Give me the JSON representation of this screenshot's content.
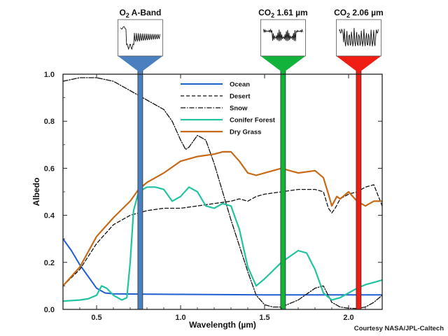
{
  "chart_data": {
    "type": "line",
    "xlabel": "Wavelength (µm)",
    "ylabel": "Albedo",
    "xlim": [
      0.3,
      2.2
    ],
    "ylim": [
      0.0,
      1.0
    ],
    "x_ticks": [
      0.5,
      1.0,
      1.5,
      2.0
    ],
    "x_tick_labels": [
      "0.5",
      "1.0",
      "1.5",
      "2.0"
    ],
    "y_ticks": [
      0.0,
      0.2,
      0.4,
      0.6,
      0.8,
      1.0
    ],
    "y_tick_labels": [
      "0.0",
      "0.2",
      "0.4",
      "0.6",
      "0.8",
      "1.0"
    ],
    "legend_position": "top-center",
    "series": [
      {
        "name": "Ocean",
        "key": "ocean",
        "color": "#1f5fd1",
        "dash": "",
        "width": 2,
        "x": [
          0.3,
          0.35,
          0.4,
          0.45,
          0.5,
          0.55,
          0.6,
          0.8,
          1.0,
          1.5,
          2.0,
          2.2
        ],
        "y": [
          0.3,
          0.25,
          0.19,
          0.14,
          0.09,
          0.07,
          0.066,
          0.065,
          0.064,
          0.062,
          0.062,
          0.062
        ]
      },
      {
        "name": "Desert",
        "key": "desert",
        "color": "#111111",
        "dash": "5,3",
        "width": 1.3,
        "x": [
          0.3,
          0.4,
          0.5,
          0.6,
          0.7,
          0.8,
          0.9,
          1.0,
          1.1,
          1.2,
          1.3,
          1.35,
          1.4,
          1.45,
          1.5,
          1.6,
          1.7,
          1.8,
          1.85,
          1.88,
          1.9,
          1.92,
          1.95,
          2.0,
          2.05,
          2.1,
          2.15,
          2.2
        ],
        "y": [
          0.1,
          0.17,
          0.28,
          0.36,
          0.4,
          0.42,
          0.43,
          0.43,
          0.44,
          0.45,
          0.46,
          0.47,
          0.46,
          0.48,
          0.49,
          0.5,
          0.51,
          0.51,
          0.5,
          0.43,
          0.41,
          0.43,
          0.47,
          0.49,
          0.5,
          0.52,
          0.53,
          0.44
        ]
      },
      {
        "name": "Snow",
        "key": "snow",
        "color": "#111111",
        "dash": "7,2,1.5,2",
        "width": 1.3,
        "x": [
          0.3,
          0.4,
          0.5,
          0.6,
          0.7,
          0.8,
          0.9,
          0.95,
          1.0,
          1.03,
          1.05,
          1.1,
          1.15,
          1.2,
          1.25,
          1.3,
          1.35,
          1.4,
          1.45,
          1.5,
          1.55,
          1.6,
          1.7,
          1.8,
          1.85,
          1.9,
          1.95,
          2.0,
          2.05,
          2.1,
          2.15,
          2.2
        ],
        "y": [
          0.97,
          0.985,
          0.985,
          0.97,
          0.93,
          0.89,
          0.85,
          0.8,
          0.72,
          0.68,
          0.69,
          0.74,
          0.72,
          0.62,
          0.5,
          0.38,
          0.27,
          0.16,
          0.06,
          0.02,
          0.01,
          0.01,
          0.04,
          0.09,
          0.1,
          0.03,
          0.01,
          0.005,
          0.004,
          0.01,
          0.03,
          0.06
        ]
      },
      {
        "name": "Conifer Forest",
        "key": "conifer",
        "color": "#22c4a0",
        "dash": "",
        "width": 2.2,
        "x": [
          0.3,
          0.4,
          0.45,
          0.5,
          0.53,
          0.56,
          0.6,
          0.65,
          0.68,
          0.7,
          0.72,
          0.75,
          0.8,
          0.85,
          0.9,
          0.95,
          1.0,
          1.05,
          1.1,
          1.15,
          1.2,
          1.25,
          1.3,
          1.35,
          1.4,
          1.45,
          1.5,
          1.6,
          1.7,
          1.75,
          1.8,
          1.85,
          1.9,
          1.95,
          2.0,
          2.05,
          2.1,
          2.15,
          2.2
        ],
        "y": [
          0.035,
          0.04,
          0.045,
          0.06,
          0.1,
          0.09,
          0.06,
          0.04,
          0.05,
          0.2,
          0.42,
          0.5,
          0.52,
          0.52,
          0.51,
          0.46,
          0.48,
          0.52,
          0.5,
          0.44,
          0.43,
          0.45,
          0.44,
          0.34,
          0.18,
          0.1,
          0.13,
          0.2,
          0.25,
          0.24,
          0.17,
          0.07,
          0.04,
          0.05,
          0.07,
          0.09,
          0.105,
          0.115,
          0.125
        ]
      },
      {
        "name": "Dry Grass",
        "key": "grass",
        "color": "#c76a17",
        "dash": "",
        "width": 2.2,
        "x": [
          0.3,
          0.4,
          0.5,
          0.6,
          0.7,
          0.75,
          0.8,
          0.9,
          1.0,
          1.1,
          1.2,
          1.25,
          1.3,
          1.35,
          1.4,
          1.45,
          1.5,
          1.55,
          1.6,
          1.65,
          1.7,
          1.8,
          1.85,
          1.88,
          1.9,
          1.93,
          1.95,
          2.0,
          2.05,
          2.1,
          2.15,
          2.2
        ],
        "y": [
          0.1,
          0.18,
          0.31,
          0.39,
          0.46,
          0.51,
          0.54,
          0.58,
          0.63,
          0.65,
          0.66,
          0.67,
          0.67,
          0.63,
          0.58,
          0.57,
          0.58,
          0.59,
          0.6,
          0.59,
          0.58,
          0.59,
          0.56,
          0.49,
          0.44,
          0.48,
          0.47,
          0.5,
          0.46,
          0.44,
          0.46,
          0.46
        ]
      }
    ],
    "absorption_bands": [
      {
        "label_main": "O",
        "label_sub": "2",
        "label_rest": " A-Band",
        "x": 0.76,
        "color": "#4a7fc0"
      },
      {
        "label_main": "CO",
        "label_sub": "2",
        "label_rest": " 1.61 µm",
        "x": 1.61,
        "color": "#12b33a"
      },
      {
        "label_main": "CO",
        "label_sub": "2",
        "label_rest": " 2.06 µm",
        "x": 2.06,
        "color": "#ef1d14"
      }
    ],
    "credit": "Courtesy NASA/JPL-Caltech"
  }
}
